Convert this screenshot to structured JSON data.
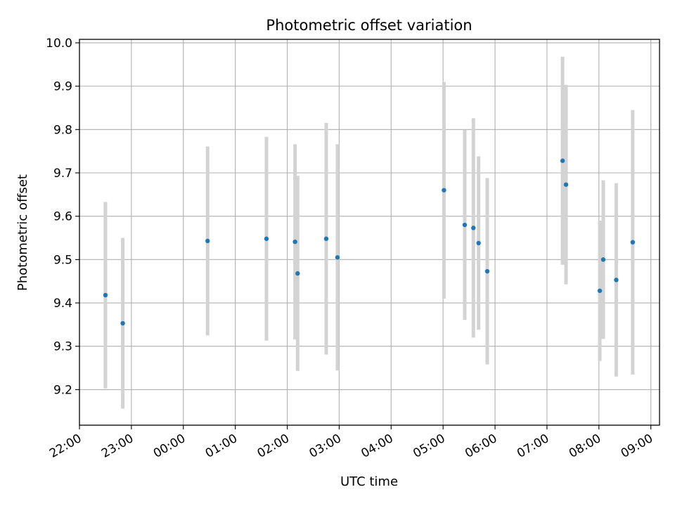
{
  "chart_data": {
    "type": "scatter",
    "title": "Photometric offset variation",
    "xlabel": "UTC time",
    "ylabel": "Photometric offset",
    "x_tick_labels": [
      "22:00",
      "23:00",
      "00:00",
      "01:00",
      "02:00",
      "03:00",
      "04:00",
      "05:00",
      "06:00",
      "07:00",
      "08:00",
      "09:00"
    ],
    "y_tick_labels": [
      "9.2",
      "9.3",
      "9.4",
      "9.5",
      "9.6",
      "9.7",
      "9.8",
      "9.9",
      "10.0"
    ],
    "ylim": [
      9.118,
      10.008
    ],
    "xlim": [
      "22:00",
      "09:10"
    ],
    "grid": true,
    "point_color": "#1f77b4",
    "errorbar_color": "#d3d3d3",
    "points": [
      {
        "x": "22:30",
        "y": 9.418,
        "err": 0.215
      },
      {
        "x": "22:50",
        "y": 9.353,
        "err": 0.197
      },
      {
        "x": "00:28",
        "y": 9.543,
        "err": 0.218
      },
      {
        "x": "01:36",
        "y": 9.548,
        "err": 0.235
      },
      {
        "x": "02:09",
        "y": 9.541,
        "err": 0.225
      },
      {
        "x": "02:12",
        "y": 9.468,
        "err": 0.225
      },
      {
        "x": "02:45",
        "y": 9.548,
        "err": 0.267
      },
      {
        "x": "02:58",
        "y": 9.505,
        "err": 0.261
      },
      {
        "x": "05:01",
        "y": 9.66,
        "err": 0.25
      },
      {
        "x": "05:25",
        "y": 9.58,
        "err": 0.219
      },
      {
        "x": "05:35",
        "y": 9.573,
        "err": 0.253
      },
      {
        "x": "05:41",
        "y": 9.538,
        "err": 0.2
      },
      {
        "x": "05:51",
        "y": 9.473,
        "err": 0.215
      },
      {
        "x": "07:18",
        "y": 9.728,
        "err": 0.24
      },
      {
        "x": "07:22",
        "y": 9.673,
        "err": 0.23
      },
      {
        "x": "08:01",
        "y": 9.428,
        "err": 0.162
      },
      {
        "x": "08:05",
        "y": 9.5,
        "err": 0.183
      },
      {
        "x": "08:20",
        "y": 9.453,
        "err": 0.223
      },
      {
        "x": "08:39",
        "y": 9.54,
        "err": 0.305
      }
    ]
  }
}
